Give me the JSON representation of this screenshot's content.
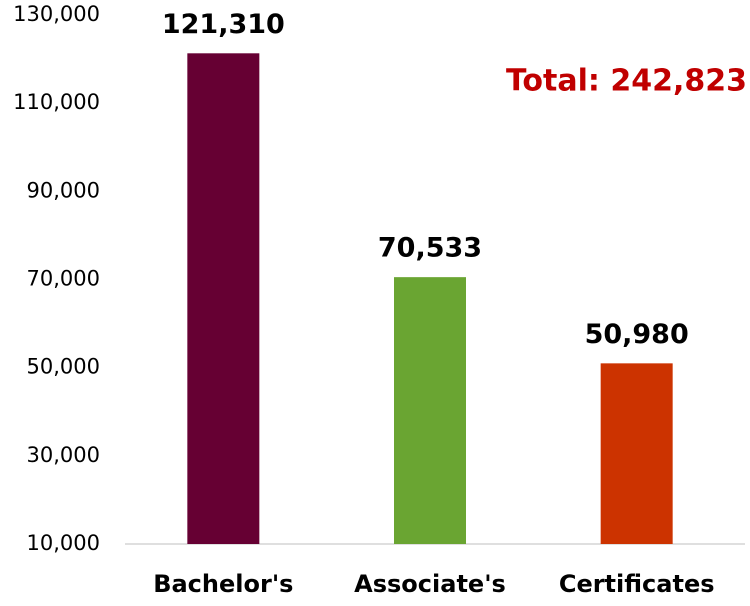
{
  "chart_data": {
    "type": "bar",
    "categories": [
      "Bachelor's",
      "Associate's",
      "Certificates"
    ],
    "values": [
      121310,
      70533,
      50980
    ],
    "value_labels": [
      "121,310",
      "70,533",
      "50,980"
    ],
    "colors": [
      "#660033",
      "#6aa532",
      "#cc3300"
    ],
    "annotation": "Total: 242,823",
    "annotation_color": "#c00000",
    "ylim": [
      10000,
      130000
    ],
    "yticks": [
      {
        "value": 10000,
        "label": "10,000"
      },
      {
        "value": 30000,
        "label": "30,000"
      },
      {
        "value": 50000,
        "label": "50,000"
      },
      {
        "value": 70000,
        "label": "70,000"
      },
      {
        "value": 90000,
        "label": "90,000"
      },
      {
        "value": 110000,
        "label": "110,000"
      },
      {
        "value": 130000,
        "label": "130,000"
      }
    ],
    "grid": false
  }
}
